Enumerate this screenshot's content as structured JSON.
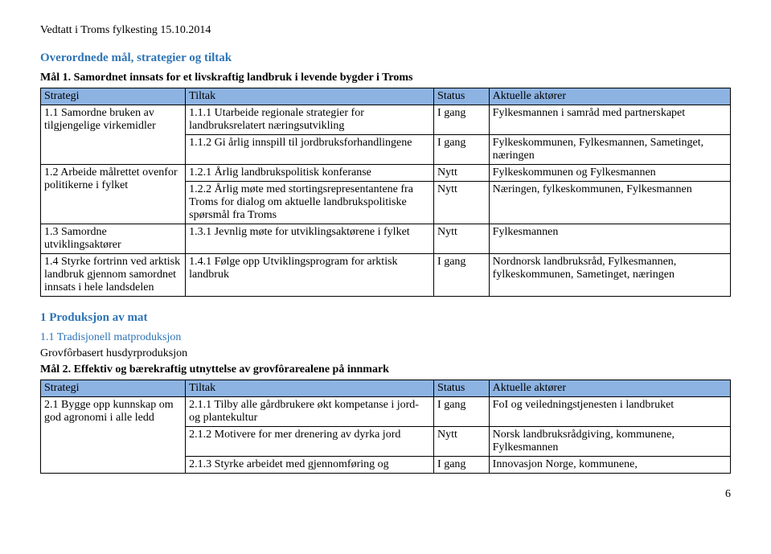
{
  "header": "Vedtatt i Troms fylkesting 15.10.2014",
  "section1_title": "Overordnede mål, strategier og tiltak",
  "mal1": "Mål 1. Samordnet innsats for et livskraftig landbruk i levende bygder i Troms",
  "t1": {
    "h1": "Strategi",
    "h2": "Tiltak",
    "h3": "Status",
    "h4": "Aktuelle aktører",
    "rows": [
      {
        "c1": "1.1 Samordne bruken av tilgjengelige virkemidler",
        "c1_rowspan": 2,
        "c2": "1.1.1 Utarbeide regionale strategier for landbruksrelatert næringsutvikling",
        "c3": "I gang",
        "c4": "Fylkesmannen i samråd med partnerskapet"
      },
      {
        "c2": "1.1.2 Gi årlig innspill til jordbruksforhandlingene",
        "c3": "I gang",
        "c4": "Fylkeskommunen, Fylkesmannen, Sametinget, næringen"
      },
      {
        "c1": "1.2 Arbeide målrettet ovenfor politikerne i fylket",
        "c1_rowspan": 2,
        "c2": "1.2.1 Årlig landbrukspolitisk konferanse",
        "c3": "Nytt",
        "c4": "Fylkeskommunen og Fylkesmannen"
      },
      {
        "c2": "1.2.2 Årlig møte med stortingsrepresentantene fra Troms for dialog om aktuelle landbrukspolitiske spørsmål fra Troms",
        "c3": "Nytt",
        "c4": "Næringen, fylkeskommunen, Fylkesmannen"
      },
      {
        "c1": "1.3 Samordne utviklingsaktører",
        "c2": "1.3.1 Jevnlig møte for utviklingsaktørene i fylket",
        "c3": "Nytt",
        "c4": "Fylkesmannen"
      },
      {
        "c1": "1.4 Styrke fortrinn ved arktisk landbruk gjennom samordnet innsats i hele landsdelen",
        "c2": "1.4.1 Følge opp Utviklingsprogram for arktisk landbruk",
        "c3": "I gang",
        "c4": "Nordnorsk landbruksråd, Fylkesmannen, fylkeskommunen, Sametinget, næringen"
      }
    ]
  },
  "section2_title": "1 Produksjon av mat",
  "sub2": "1.1 Tradisjonell matproduksjon",
  "plain2": "Grovfôrbasert husdyrproduksjon",
  "mal2": "Mål 2. Effektiv og bærekraftig utnyttelse av grovfôrarealene på innmark",
  "t2": {
    "h1": "Strategi",
    "h2": "Tiltak",
    "h3": "Status",
    "h4": "Aktuelle aktører",
    "rows": [
      {
        "c1": "2.1 Bygge opp kunnskap om god agronomi i alle ledd",
        "c1_rowspan": 3,
        "c2": "2.1.1 Tilby alle gårdbrukere økt kompetanse i jord- og plantekultur",
        "c3": "I gang",
        "c4": "FoI og veiledningstjenesten i landbruket"
      },
      {
        "c2": "2.1.2 Motivere for mer drenering av dyrka jord",
        "c3": "Nytt",
        "c4": "Norsk landbruksrådgiving, kommunene, Fylkesmannen"
      },
      {
        "c2": "2.1.3 Styrke arbeidet med gjennomføring og",
        "c3": "I gang",
        "c4": "Innovasjon Norge, kommunene,"
      }
    ]
  },
  "page_number": "6"
}
